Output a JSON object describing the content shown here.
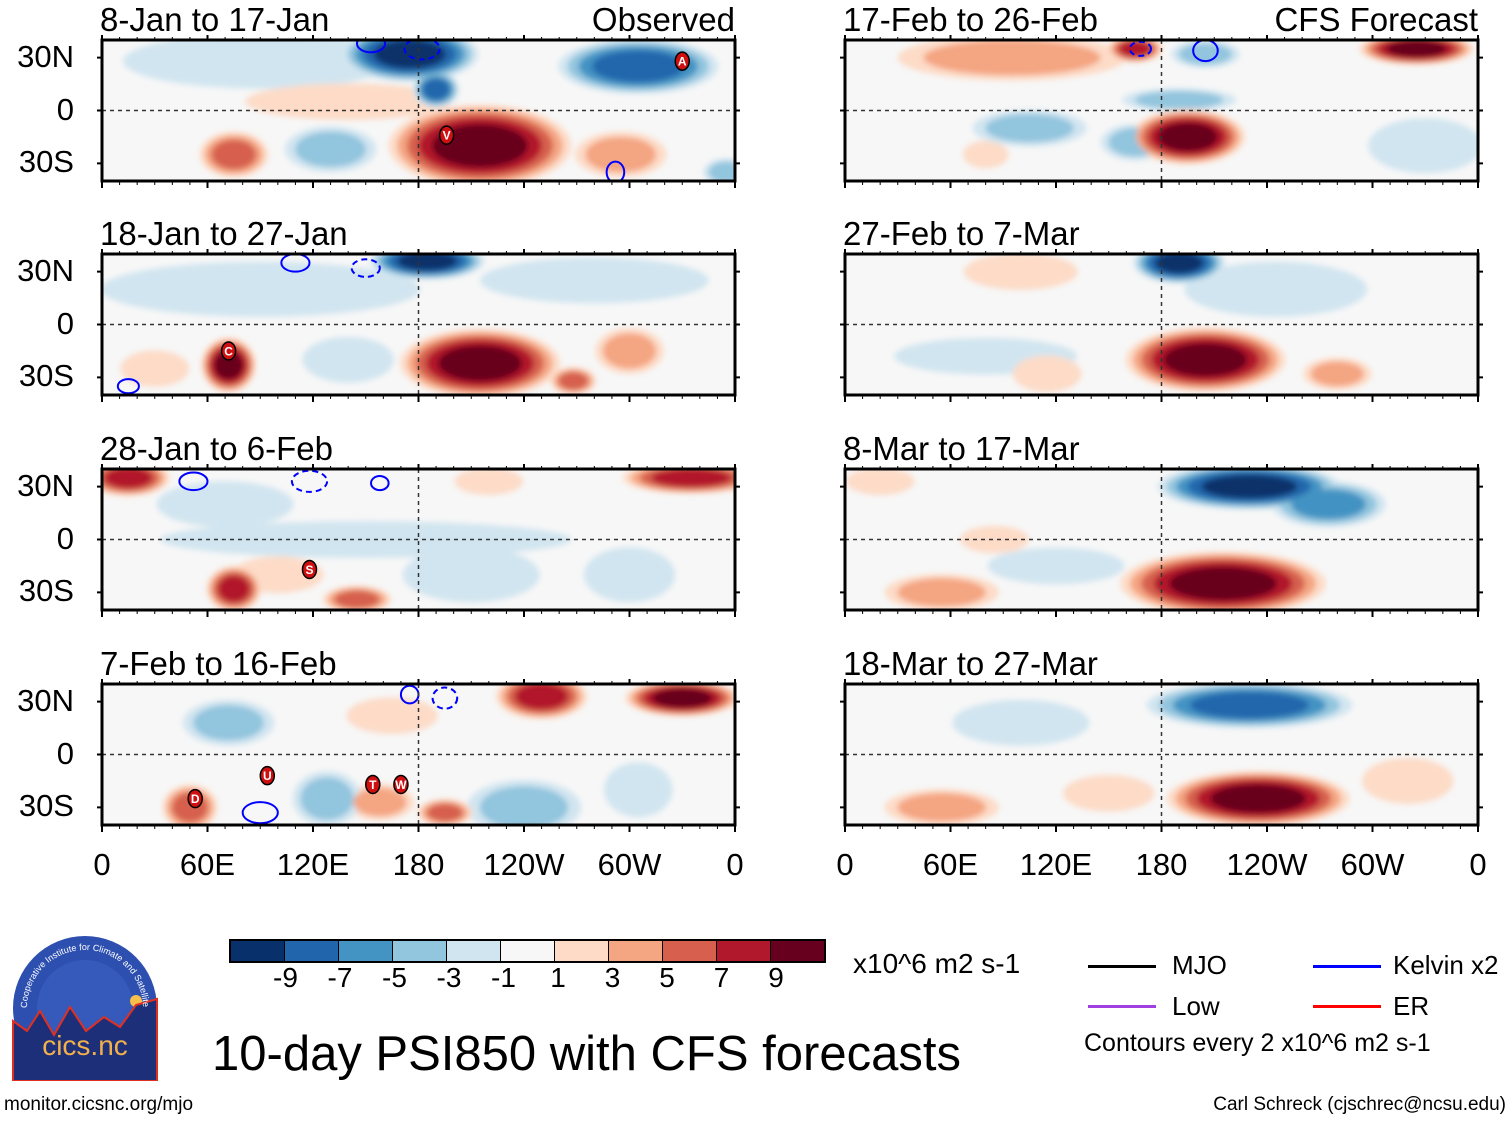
{
  "figure": {
    "title": "10-day PSI850 with CFS forecasts",
    "units": "x10^6 m2 s-1",
    "contour_note": "Contours every 2 x10^6 m2 s-1",
    "url": "monitor.cicsnc.org/mjo",
    "credit": "Carl Schreck (cjschrec@ncsu.edu)",
    "logo_text": "cics.nc",
    "logo_ring_text": "Cooperative Institute for Climate and Satellites",
    "observed_label": "Observed",
    "forecast_label": "CFS Forecast"
  },
  "axes": {
    "y_ticks": [
      "30N",
      "0",
      "30S"
    ],
    "x_ticks": [
      "0",
      "60E",
      "120E",
      "180",
      "120W",
      "60W",
      "0"
    ],
    "lat_range": [
      -40,
      40
    ],
    "lon_range": [
      0,
      360
    ]
  },
  "colorbar": {
    "colors": [
      "#08306b",
      "#2166ac",
      "#4393c3",
      "#92c5de",
      "#d1e5f0",
      "#f7f7f7",
      "#fddbc7",
      "#f4a582",
      "#d6604d",
      "#b2182b",
      "#67001f"
    ],
    "labels": [
      "-9",
      "-7",
      "-5",
      "-3",
      "-1",
      "1",
      "3",
      "5",
      "7",
      "9"
    ]
  },
  "legend": [
    {
      "label": "MJO",
      "color": "#000000"
    },
    {
      "label": "Kelvin x2",
      "color": "#0000ff"
    },
    {
      "label": "Low",
      "color": "#a040e0"
    },
    {
      "label": "ER",
      "color": "#ff0000"
    }
  ],
  "chart_data": {
    "type": "heatmap",
    "panels": [
      {
        "title": "8-Jan to 17-Jan",
        "column": "observed",
        "anomalies": [
          {
            "lon": 175,
            "lat": 32,
            "dlon": 30,
            "dlat": 12,
            "value": -11
          },
          {
            "lon": 190,
            "lat": 12,
            "dlon": 10,
            "dlat": 8,
            "value": -9
          },
          {
            "lon": 305,
            "lat": 25,
            "dlon": 35,
            "dlat": 12,
            "value": -9
          },
          {
            "lon": 90,
            "lat": 28,
            "dlon": 60,
            "dlat": 12,
            "value": -3
          },
          {
            "lon": 130,
            "lat": -22,
            "dlon": 20,
            "dlat": 10,
            "value": -5
          },
          {
            "lon": 215,
            "lat": -20,
            "dlon": 40,
            "dlat": 18,
            "value": 11
          },
          {
            "lon": 140,
            "lat": 5,
            "dlon": 45,
            "dlat": 8,
            "value": 3
          },
          {
            "lon": 75,
            "lat": -25,
            "dlon": 15,
            "dlat": 10,
            "value": 7
          },
          {
            "lon": 295,
            "lat": -25,
            "dlon": 20,
            "dlat": 10,
            "value": 5
          },
          {
            "lon": 355,
            "lat": -35,
            "dlon": 10,
            "dlat": 6,
            "value": -5
          }
        ],
        "contours": [
          {
            "lon": 153,
            "lat": 38,
            "dlon": 8,
            "dlat": 5,
            "dashed": false
          },
          {
            "lon": 182,
            "lat": 35,
            "dlon": 10,
            "dlat": 6,
            "dashed": true
          },
          {
            "lon": 292,
            "lat": -35,
            "dlon": 5,
            "dlat": 6,
            "dashed": false
          }
        ],
        "markers": [
          {
            "label": "A",
            "lon": 330,
            "lat": 28
          },
          {
            "label": "V",
            "lon": 196,
            "lat": -14
          }
        ]
      },
      {
        "title": "18-Jan to 27-Jan",
        "column": "observed",
        "anomalies": [
          {
            "lon": 185,
            "lat": 36,
            "dlon": 25,
            "dlat": 8,
            "value": -11
          },
          {
            "lon": 90,
            "lat": 20,
            "dlon": 70,
            "dlat": 12,
            "value": -3
          },
          {
            "lon": 280,
            "lat": 25,
            "dlon": 50,
            "dlat": 10,
            "value": -3
          },
          {
            "lon": 72,
            "lat": -23,
            "dlon": 12,
            "dlat": 12,
            "value": 11
          },
          {
            "lon": 215,
            "lat": -22,
            "dlon": 35,
            "dlat": 15,
            "value": 11
          },
          {
            "lon": 268,
            "lat": -32,
            "dlon": 10,
            "dlat": 6,
            "value": 7
          },
          {
            "lon": 300,
            "lat": -15,
            "dlon": 15,
            "dlat": 10,
            "value": 5
          },
          {
            "lon": 30,
            "lat": -25,
            "dlon": 15,
            "dlat": 8,
            "value": 3
          },
          {
            "lon": 140,
            "lat": -20,
            "dlon": 20,
            "dlat": 10,
            "value": -3
          }
        ],
        "contours": [
          {
            "lon": 110,
            "lat": 35,
            "dlon": 8,
            "dlat": 5,
            "dashed": false
          },
          {
            "lon": 150,
            "lat": 32,
            "dlon": 8,
            "dlat": 5,
            "dashed": true
          },
          {
            "lon": 15,
            "lat": -35,
            "dlon": 6,
            "dlat": 4,
            "dashed": false
          }
        ],
        "markers": [
          {
            "label": "C",
            "lon": 72,
            "lat": -15
          }
        ]
      },
      {
        "title": "28-Jan to 6-Feb",
        "column": "observed",
        "anomalies": [
          {
            "lon": 15,
            "lat": 35,
            "dlon": 18,
            "dlat": 8,
            "value": 9
          },
          {
            "lon": 335,
            "lat": 35,
            "dlon": 30,
            "dlat": 7,
            "value": 9
          },
          {
            "lon": 220,
            "lat": 33,
            "dlon": 15,
            "dlat": 6,
            "value": 3
          },
          {
            "lon": 150,
            "lat": 0,
            "dlon": 90,
            "dlat": 8,
            "value": -3
          },
          {
            "lon": 75,
            "lat": -28,
            "dlon": 12,
            "dlat": 10,
            "value": 9
          },
          {
            "lon": 145,
            "lat": -34,
            "dlon": 15,
            "dlat": 6,
            "value": 7
          },
          {
            "lon": 100,
            "lat": -20,
            "dlon": 20,
            "dlat": 8,
            "value": 3
          },
          {
            "lon": 210,
            "lat": -20,
            "dlon": 30,
            "dlat": 12,
            "value": -3
          },
          {
            "lon": 300,
            "lat": -20,
            "dlon": 20,
            "dlat": 12,
            "value": -3
          },
          {
            "lon": 70,
            "lat": 20,
            "dlon": 30,
            "dlat": 10,
            "value": -3
          }
        ],
        "contours": [
          {
            "lon": 52,
            "lat": 33,
            "dlon": 8,
            "dlat": 5,
            "dashed": false
          },
          {
            "lon": 158,
            "lat": 32,
            "dlon": 5,
            "dlat": 4,
            "dashed": false
          },
          {
            "lon": 118,
            "lat": 33,
            "dlon": 10,
            "dlat": 6,
            "dashed": true
          }
        ],
        "markers": [
          {
            "label": "S",
            "lon": 118,
            "lat": -17
          }
        ]
      },
      {
        "title": "7-Feb to 16-Feb",
        "column": "observed",
        "anomalies": [
          {
            "lon": 330,
            "lat": 32,
            "dlon": 25,
            "dlat": 8,
            "value": 11
          },
          {
            "lon": 250,
            "lat": 33,
            "dlon": 20,
            "dlat": 10,
            "value": 9
          },
          {
            "lon": 50,
            "lat": -30,
            "dlon": 12,
            "dlat": 10,
            "value": 7
          },
          {
            "lon": 158,
            "lat": -27,
            "dlon": 15,
            "dlat": 8,
            "value": 5
          },
          {
            "lon": 195,
            "lat": -33,
            "dlon": 12,
            "dlat": 6,
            "value": 7
          },
          {
            "lon": 165,
            "lat": 22,
            "dlon": 20,
            "dlat": 8,
            "value": 3
          },
          {
            "lon": 128,
            "lat": -25,
            "dlon": 15,
            "dlat": 12,
            "value": -5
          },
          {
            "lon": 240,
            "lat": -30,
            "dlon": 25,
            "dlat": 12,
            "value": -5
          },
          {
            "lon": 72,
            "lat": 18,
            "dlon": 20,
            "dlat": 10,
            "value": -5
          },
          {
            "lon": 305,
            "lat": -20,
            "dlon": 15,
            "dlat": 12,
            "value": -3
          }
        ],
        "contours": [
          {
            "lon": 175,
            "lat": 34,
            "dlon": 5,
            "dlat": 5,
            "dashed": false
          },
          {
            "lon": 195,
            "lat": 32,
            "dlon": 7,
            "dlat": 6,
            "dashed": true
          },
          {
            "lon": 90,
            "lat": -33,
            "dlon": 10,
            "dlat": 6,
            "dashed": false
          }
        ],
        "markers": [
          {
            "label": "D",
            "lon": 53,
            "lat": -25
          },
          {
            "label": "U",
            "lon": 94,
            "lat": -12
          },
          {
            "label": "T",
            "lon": 154,
            "lat": -17
          },
          {
            "label": "W",
            "lon": 170,
            "lat": -17
          }
        ]
      },
      {
        "title": "17-Feb to 26-Feb",
        "column": "forecast",
        "anomalies": [
          {
            "lon": 95,
            "lat": 30,
            "dlon": 50,
            "dlat": 10,
            "value": 5
          },
          {
            "lon": 165,
            "lat": 35,
            "dlon": 12,
            "dlat": 6,
            "value": 9
          },
          {
            "lon": 325,
            "lat": 35,
            "dlon": 25,
            "dlat": 7,
            "value": 11
          },
          {
            "lon": 205,
            "lat": 32,
            "dlon": 15,
            "dlat": 6,
            "value": -5
          },
          {
            "lon": 195,
            "lat": -15,
            "dlon": 25,
            "dlat": 12,
            "value": 11
          },
          {
            "lon": 190,
            "lat": 6,
            "dlon": 25,
            "dlat": 5,
            "value": -5
          },
          {
            "lon": 105,
            "lat": -10,
            "dlon": 25,
            "dlat": 8,
            "value": -5
          },
          {
            "lon": 165,
            "lat": -18,
            "dlon": 15,
            "dlat": 8,
            "value": -5
          },
          {
            "lon": 330,
            "lat": -20,
            "dlon": 25,
            "dlat": 12,
            "value": -3
          },
          {
            "lon": 80,
            "lat": -25,
            "dlon": 10,
            "dlat": 6,
            "value": 3
          }
        ],
        "contours": [
          {
            "lon": 205,
            "lat": 34,
            "dlon": 7,
            "dlat": 6,
            "dashed": false
          },
          {
            "lon": 168,
            "lat": 35,
            "dlon": 6,
            "dlat": 4,
            "dashed": true
          }
        ],
        "markers": []
      },
      {
        "title": "27-Feb to 7-Mar",
        "column": "forecast",
        "anomalies": [
          {
            "lon": 190,
            "lat": 35,
            "dlon": 20,
            "dlat": 9,
            "value": -11
          },
          {
            "lon": 245,
            "lat": 20,
            "dlon": 40,
            "dlat": 12,
            "value": -3
          },
          {
            "lon": 100,
            "lat": 30,
            "dlon": 25,
            "dlat": 8,
            "value": 3
          },
          {
            "lon": 205,
            "lat": -20,
            "dlon": 35,
            "dlat": 14,
            "value": 11
          },
          {
            "lon": 80,
            "lat": -18,
            "dlon": 40,
            "dlat": 8,
            "value": -3
          },
          {
            "lon": 115,
            "lat": -28,
            "dlon": 15,
            "dlat": 8,
            "value": 3
          },
          {
            "lon": 280,
            "lat": -28,
            "dlon": 15,
            "dlat": 7,
            "value": 5
          }
        ],
        "contours": [],
        "markers": []
      },
      {
        "title": "8-Mar to 17-Mar",
        "column": "forecast",
        "anomalies": [
          {
            "lon": 230,
            "lat": 30,
            "dlon": 40,
            "dlat": 10,
            "value": -11
          },
          {
            "lon": 275,
            "lat": 20,
            "dlon": 25,
            "dlat": 10,
            "value": -7
          },
          {
            "lon": 20,
            "lat": 33,
            "dlon": 15,
            "dlat": 6,
            "value": 3
          },
          {
            "lon": 85,
            "lat": 0,
            "dlon": 15,
            "dlat": 6,
            "value": 3
          },
          {
            "lon": 215,
            "lat": -25,
            "dlon": 45,
            "dlat": 14,
            "value": 11
          },
          {
            "lon": 55,
            "lat": -30,
            "dlon": 25,
            "dlat": 8,
            "value": 5
          },
          {
            "lon": 120,
            "lat": -15,
            "dlon": 30,
            "dlat": 8,
            "value": -3
          }
        ],
        "contours": [],
        "markers": []
      },
      {
        "title": "18-Mar to 27-Mar",
        "column": "forecast",
        "anomalies": [
          {
            "lon": 230,
            "lat": 28,
            "dlon": 45,
            "dlat": 10,
            "value": -9
          },
          {
            "lon": 235,
            "lat": -25,
            "dlon": 40,
            "dlat": 12,
            "value": 11
          },
          {
            "lon": 55,
            "lat": -30,
            "dlon": 25,
            "dlat": 8,
            "value": 5
          },
          {
            "lon": 150,
            "lat": -22,
            "dlon": 20,
            "dlat": 8,
            "value": 3
          },
          {
            "lon": 100,
            "lat": 18,
            "dlon": 30,
            "dlat": 10,
            "value": -3
          },
          {
            "lon": 320,
            "lat": -15,
            "dlon": 20,
            "dlat": 10,
            "value": 3
          }
        ],
        "contours": [],
        "markers": []
      }
    ]
  }
}
